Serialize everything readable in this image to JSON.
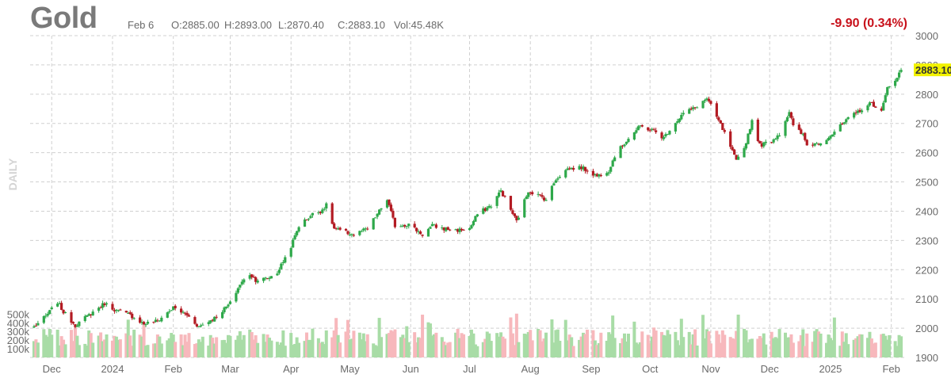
{
  "header": {
    "title": "Gold",
    "date": "Feb 6",
    "open": "O:2885.00",
    "high": "H:2893.00",
    "low": "L:2870.40",
    "close": "C:2883.10",
    "volume": "Vol:45.48K",
    "change": "-9.90 (0.34%)",
    "period": "DAILY"
  },
  "colors": {
    "up": "#2ea84a",
    "down": "#b31b23",
    "volume_up": "#a8dca6",
    "volume_down": "#f7b8bc",
    "change": "#c8111b",
    "last_price_bg": "#f2f200",
    "grid": "#d0d0d0"
  },
  "chart_data": {
    "type": "candlestick",
    "title": "Gold",
    "period": "DAILY",
    "price_axis": {
      "ylim": [
        1900,
        3000
      ],
      "ticks": [
        "3000",
        "2900",
        "2800",
        "2700",
        "2600",
        "2500",
        "2400",
        "2300",
        "2200",
        "2100",
        "2000",
        "1900"
      ]
    },
    "volume_axis": {
      "ylim": [
        0,
        1200000
      ],
      "ticks": [
        "500k",
        "400k",
        "300k",
        "200k",
        "100k"
      ]
    },
    "last_price": "2883.10",
    "x_tick_labels": [
      "Dec",
      "2024",
      "Feb",
      "Mar",
      "Apr",
      "May",
      "Jun",
      "Jul",
      "Aug",
      "Sep",
      "Oct",
      "Nov",
      "Dec",
      "2025",
      "Feb"
    ],
    "grid": true,
    "anchors": [
      [
        "2023-11-22",
        2005
      ],
      [
        "2023-11-28",
        2040
      ],
      [
        "2023-12-04",
        2090
      ],
      [
        "2023-12-07",
        2055
      ],
      [
        "2023-12-13",
        2010
      ],
      [
        "2023-12-20",
        2045
      ],
      [
        "2023-12-28",
        2085
      ],
      [
        "2024-01-03",
        2060
      ],
      [
        "2024-01-10",
        2045
      ],
      [
        "2024-01-17",
        2015
      ],
      [
        "2024-01-24",
        2025
      ],
      [
        "2024-02-01",
        2070
      ],
      [
        "2024-02-08",
        2045
      ],
      [
        "2024-02-14",
        2005
      ],
      [
        "2024-02-22",
        2035
      ],
      [
        "2024-03-01",
        2085
      ],
      [
        "2024-03-06",
        2150
      ],
      [
        "2024-03-11",
        2185
      ],
      [
        "2024-03-14",
        2165
      ],
      [
        "2024-03-20",
        2170
      ],
      [
        "2024-03-25",
        2190
      ],
      [
        "2024-04-01",
        2280
      ],
      [
        "2024-04-05",
        2350
      ],
      [
        "2024-04-12",
        2390
      ],
      [
        "2024-04-16",
        2400
      ],
      [
        "2024-04-19",
        2420
      ],
      [
        "2024-04-23",
        2340
      ],
      [
        "2024-04-30",
        2325
      ],
      [
        "2024-05-03",
        2320
      ],
      [
        "2024-05-10",
        2340
      ],
      [
        "2024-05-15",
        2390
      ],
      [
        "2024-05-20",
        2440
      ],
      [
        "2024-05-24",
        2350
      ],
      [
        "2024-05-31",
        2355
      ],
      [
        "2024-06-07",
        2320
      ],
      [
        "2024-06-12",
        2350
      ],
      [
        "2024-06-18",
        2340
      ],
      [
        "2024-06-25",
        2335
      ],
      [
        "2024-07-01",
        2340
      ],
      [
        "2024-07-05",
        2390
      ],
      [
        "2024-07-12",
        2420
      ],
      [
        "2024-07-17",
        2470
      ],
      [
        "2024-07-22",
        2405
      ],
      [
        "2024-07-25",
        2365
      ],
      [
        "2024-07-31",
        2470
      ],
      [
        "2024-08-05",
        2455
      ],
      [
        "2024-08-09",
        2440
      ],
      [
        "2024-08-14",
        2510
      ],
      [
        "2024-08-20",
        2545
      ],
      [
        "2024-08-27",
        2550
      ],
      [
        "2024-09-04",
        2520
      ],
      [
        "2024-09-10",
        2540
      ],
      [
        "2024-09-13",
        2590
      ],
      [
        "2024-09-20",
        2650
      ],
      [
        "2024-09-26",
        2690
      ],
      [
        "2024-10-03",
        2675
      ],
      [
        "2024-10-08",
        2650
      ],
      [
        "2024-10-11",
        2680
      ],
      [
        "2024-10-18",
        2735
      ],
      [
        "2024-10-23",
        2750
      ],
      [
        "2024-10-30",
        2785
      ],
      [
        "2024-11-01",
        2760
      ],
      [
        "2024-11-06",
        2695
      ],
      [
        "2024-11-11",
        2620
      ],
      [
        "2024-11-14",
        2570
      ],
      [
        "2024-11-18",
        2615
      ],
      [
        "2024-11-22",
        2710
      ],
      [
        "2024-11-26",
        2625
      ],
      [
        "2024-12-02",
        2640
      ],
      [
        "2024-12-06",
        2665
      ],
      [
        "2024-12-11",
        2740
      ],
      [
        "2024-12-13",
        2690
      ],
      [
        "2024-12-18",
        2660
      ],
      [
        "2024-12-20",
        2625
      ],
      [
        "2024-12-27",
        2635
      ],
      [
        "2025-01-02",
        2665
      ],
      [
        "2025-01-10",
        2715
      ],
      [
        "2025-01-16",
        2745
      ],
      [
        "2025-01-22",
        2770
      ],
      [
        "2025-01-27",
        2740
      ],
      [
        "2025-01-30",
        2820
      ],
      [
        "2025-02-04",
        2860
      ],
      [
        "2025-02-06",
        2883.1
      ]
    ]
  }
}
